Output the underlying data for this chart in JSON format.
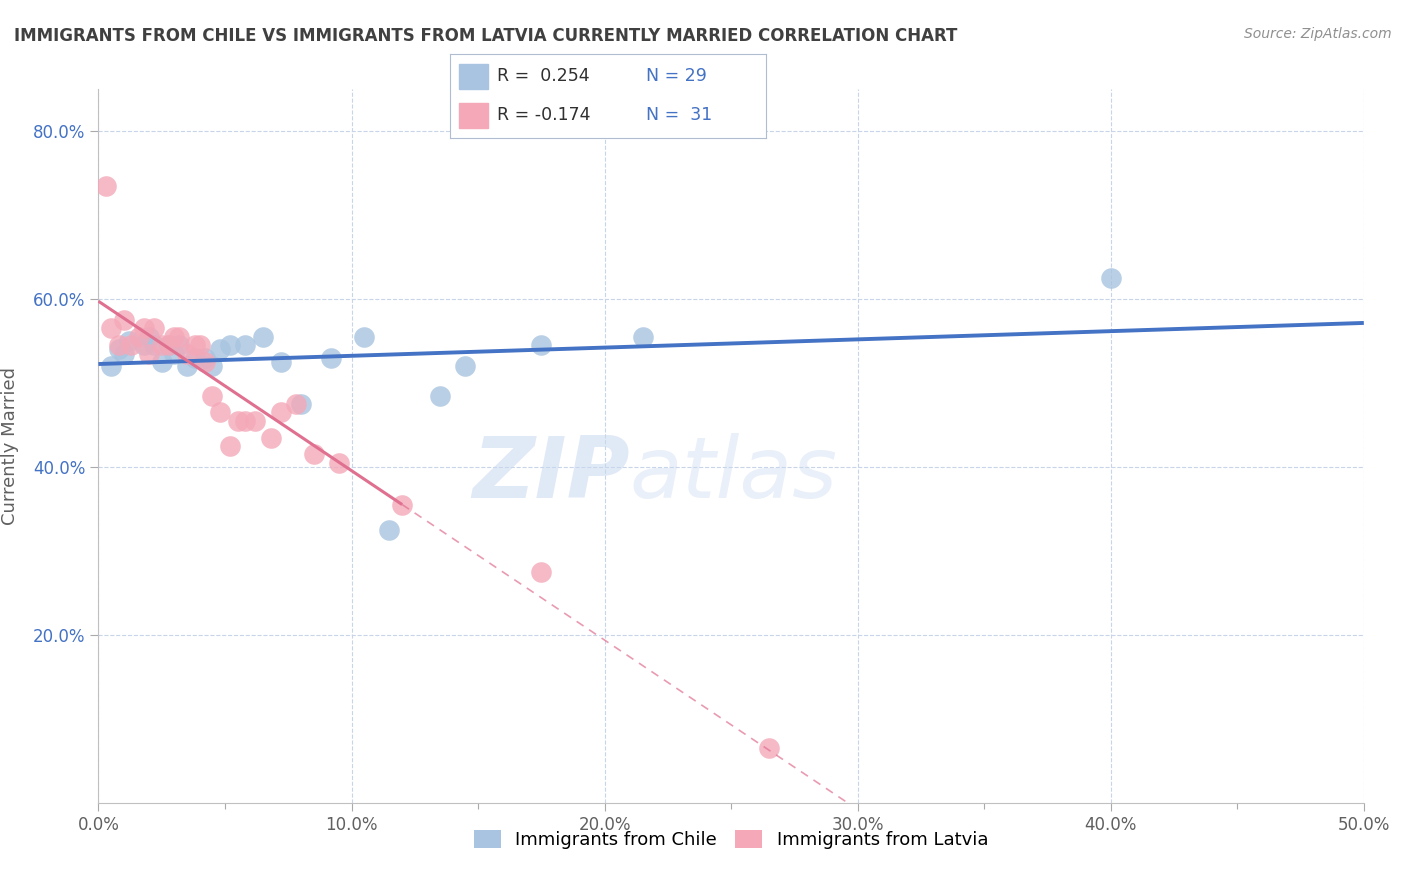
{
  "title": "IMMIGRANTS FROM CHILE VS IMMIGRANTS FROM LATVIA CURRENTLY MARRIED CORRELATION CHART",
  "source": "Source: ZipAtlas.com",
  "ylabel": "Currently Married",
  "xlim": [
    0.0,
    0.5
  ],
  "ylim": [
    0.0,
    0.85
  ],
  "xtick_labels": [
    "0.0%",
    "",
    "",
    "",
    "",
    "",
    "",
    "",
    "",
    "",
    "10.0%",
    "",
    "",
    "",
    "",
    "",
    "",
    "",
    "",
    "",
    "20.0%",
    "",
    "",
    "",
    "",
    "",
    "",
    "",
    "",
    "",
    "30.0%",
    "",
    "",
    "",
    "",
    "",
    "",
    "",
    "",
    "",
    "40.0%",
    "",
    "",
    "",
    "",
    "",
    "",
    "",
    "",
    "",
    "50.0%"
  ],
  "xtick_vals": [
    0.0,
    0.01,
    0.02,
    0.03,
    0.04,
    0.05,
    0.06,
    0.07,
    0.08,
    0.09,
    0.1,
    0.11,
    0.12,
    0.13,
    0.14,
    0.15,
    0.16,
    0.17,
    0.18,
    0.19,
    0.2,
    0.21,
    0.22,
    0.23,
    0.24,
    0.25,
    0.26,
    0.27,
    0.28,
    0.29,
    0.3,
    0.31,
    0.32,
    0.33,
    0.34,
    0.35,
    0.36,
    0.37,
    0.38,
    0.39,
    0.4,
    0.41,
    0.42,
    0.43,
    0.44,
    0.45,
    0.46,
    0.47,
    0.48,
    0.49,
    0.5
  ],
  "xtick_major_labels": [
    "0.0%",
    "10.0%",
    "20.0%",
    "30.0%",
    "40.0%",
    "50.0%"
  ],
  "xtick_major_vals": [
    0.0,
    0.1,
    0.2,
    0.3,
    0.4,
    0.5
  ],
  "ytick_labels": [
    "20.0%",
    "40.0%",
    "60.0%",
    "80.0%"
  ],
  "ytick_vals": [
    0.2,
    0.4,
    0.6,
    0.8
  ],
  "legend_R_chile": "R =  0.254",
  "legend_N_chile": "N = 29",
  "legend_R_latvia": "R = -0.174",
  "legend_N_latvia": "N =  31",
  "chile_color": "#a8c4e0",
  "latvia_color": "#f4a8b8",
  "chile_line_color": "#4472c4",
  "latvia_line_color": "#e07090",
  "chile_scatter_x": [
    0.005,
    0.008,
    0.01,
    0.012,
    0.018,
    0.02,
    0.022,
    0.025,
    0.028,
    0.03,
    0.032,
    0.035,
    0.038,
    0.042,
    0.045,
    0.048,
    0.052,
    0.058,
    0.065,
    0.072,
    0.08,
    0.092,
    0.105,
    0.115,
    0.135,
    0.145,
    0.175,
    0.215,
    0.4
  ],
  "chile_scatter_y": [
    0.52,
    0.54,
    0.535,
    0.55,
    0.545,
    0.555,
    0.545,
    0.525,
    0.545,
    0.535,
    0.545,
    0.52,
    0.53,
    0.53,
    0.52,
    0.54,
    0.545,
    0.545,
    0.555,
    0.525,
    0.475,
    0.53,
    0.555,
    0.325,
    0.485,
    0.52,
    0.545,
    0.555,
    0.625
  ],
  "latvia_scatter_x": [
    0.003,
    0.005,
    0.008,
    0.01,
    0.013,
    0.016,
    0.018,
    0.02,
    0.022,
    0.025,
    0.028,
    0.03,
    0.032,
    0.035,
    0.038,
    0.04,
    0.042,
    0.045,
    0.048,
    0.052,
    0.055,
    0.058,
    0.062,
    0.068,
    0.072,
    0.078,
    0.085,
    0.095,
    0.12,
    0.175,
    0.265
  ],
  "latvia_scatter_y": [
    0.735,
    0.565,
    0.545,
    0.575,
    0.545,
    0.555,
    0.565,
    0.535,
    0.565,
    0.545,
    0.545,
    0.555,
    0.555,
    0.535,
    0.545,
    0.545,
    0.525,
    0.485,
    0.465,
    0.425,
    0.455,
    0.455,
    0.455,
    0.435,
    0.465,
    0.475,
    0.415,
    0.405,
    0.355,
    0.275,
    0.065
  ],
  "latvia_line_solid_end": 0.12,
  "watermark_line1": "ZIP",
  "watermark_line2": "atlas",
  "background_color": "#ffffff",
  "grid_color": "#c8d4e8",
  "title_color": "#404040",
  "axis_label_color": "#606060"
}
